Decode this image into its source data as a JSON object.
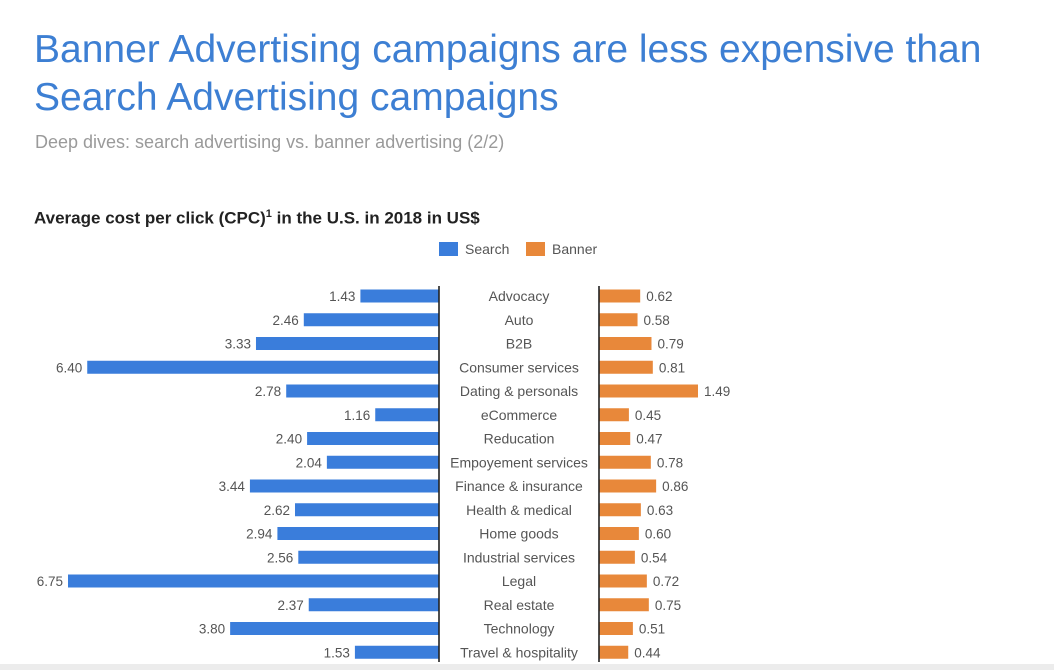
{
  "slide": {
    "title_line1": "Banner Advertising campaigns are less expensive than",
    "title_line2": "Search Advertising campaigns",
    "subtitle": "Deep dives: search advertising vs. banner advertising (2/2)",
    "chart_title": "Average cost per click (CPC)",
    "chart_title_sup": "1",
    "chart_title_rest": " in the U.S. in 2018 in US$"
  },
  "colors": {
    "search": "#3a7ddb",
    "banner": "#e8883a",
    "title": "#3d7fd3",
    "axis": "#222222",
    "label": "#555555"
  },
  "chart_data": {
    "type": "bar",
    "orientation": "horizontal-butterfly",
    "legend_position": "top",
    "categories": [
      "Advocacy",
      "Auto",
      "B2B",
      "Consumer services",
      "Dating & personals",
      "eCommerce",
      "Reducation",
      "Empoyement services",
      "Finance & insurance",
      "Health & medical",
      "Home goods",
      "Industrial services",
      "Legal",
      "Real estate",
      "Technology",
      "Travel & hospitality"
    ],
    "series": [
      {
        "name": "Search",
        "values": [
          1.43,
          2.46,
          3.33,
          6.4,
          2.78,
          1.16,
          2.4,
          2.04,
          3.44,
          2.62,
          2.94,
          2.56,
          6.75,
          2.37,
          3.8,
          1.53
        ],
        "labels": [
          "1.43",
          "2.46",
          "3.33",
          "6.40",
          "2.78",
          "1.16",
          "2.40",
          "2.04",
          "3.44",
          "2.62",
          "2.94",
          "2.56",
          "6.75",
          "2.37",
          "3.80",
          "1.53"
        ]
      },
      {
        "name": "Banner",
        "values": [
          0.62,
          0.58,
          0.79,
          0.81,
          1.49,
          0.45,
          0.47,
          0.78,
          0.86,
          0.63,
          0.6,
          0.54,
          0.72,
          0.75,
          0.51,
          0.44
        ],
        "labels": [
          "0.62",
          "0.58",
          "0.79",
          "0.81",
          "1.49",
          "0.45",
          "0.47",
          "0.78",
          "0.86",
          "0.63",
          "0.60",
          "0.54",
          "0.72",
          "0.75",
          "0.51",
          "0.44"
        ]
      }
    ]
  }
}
